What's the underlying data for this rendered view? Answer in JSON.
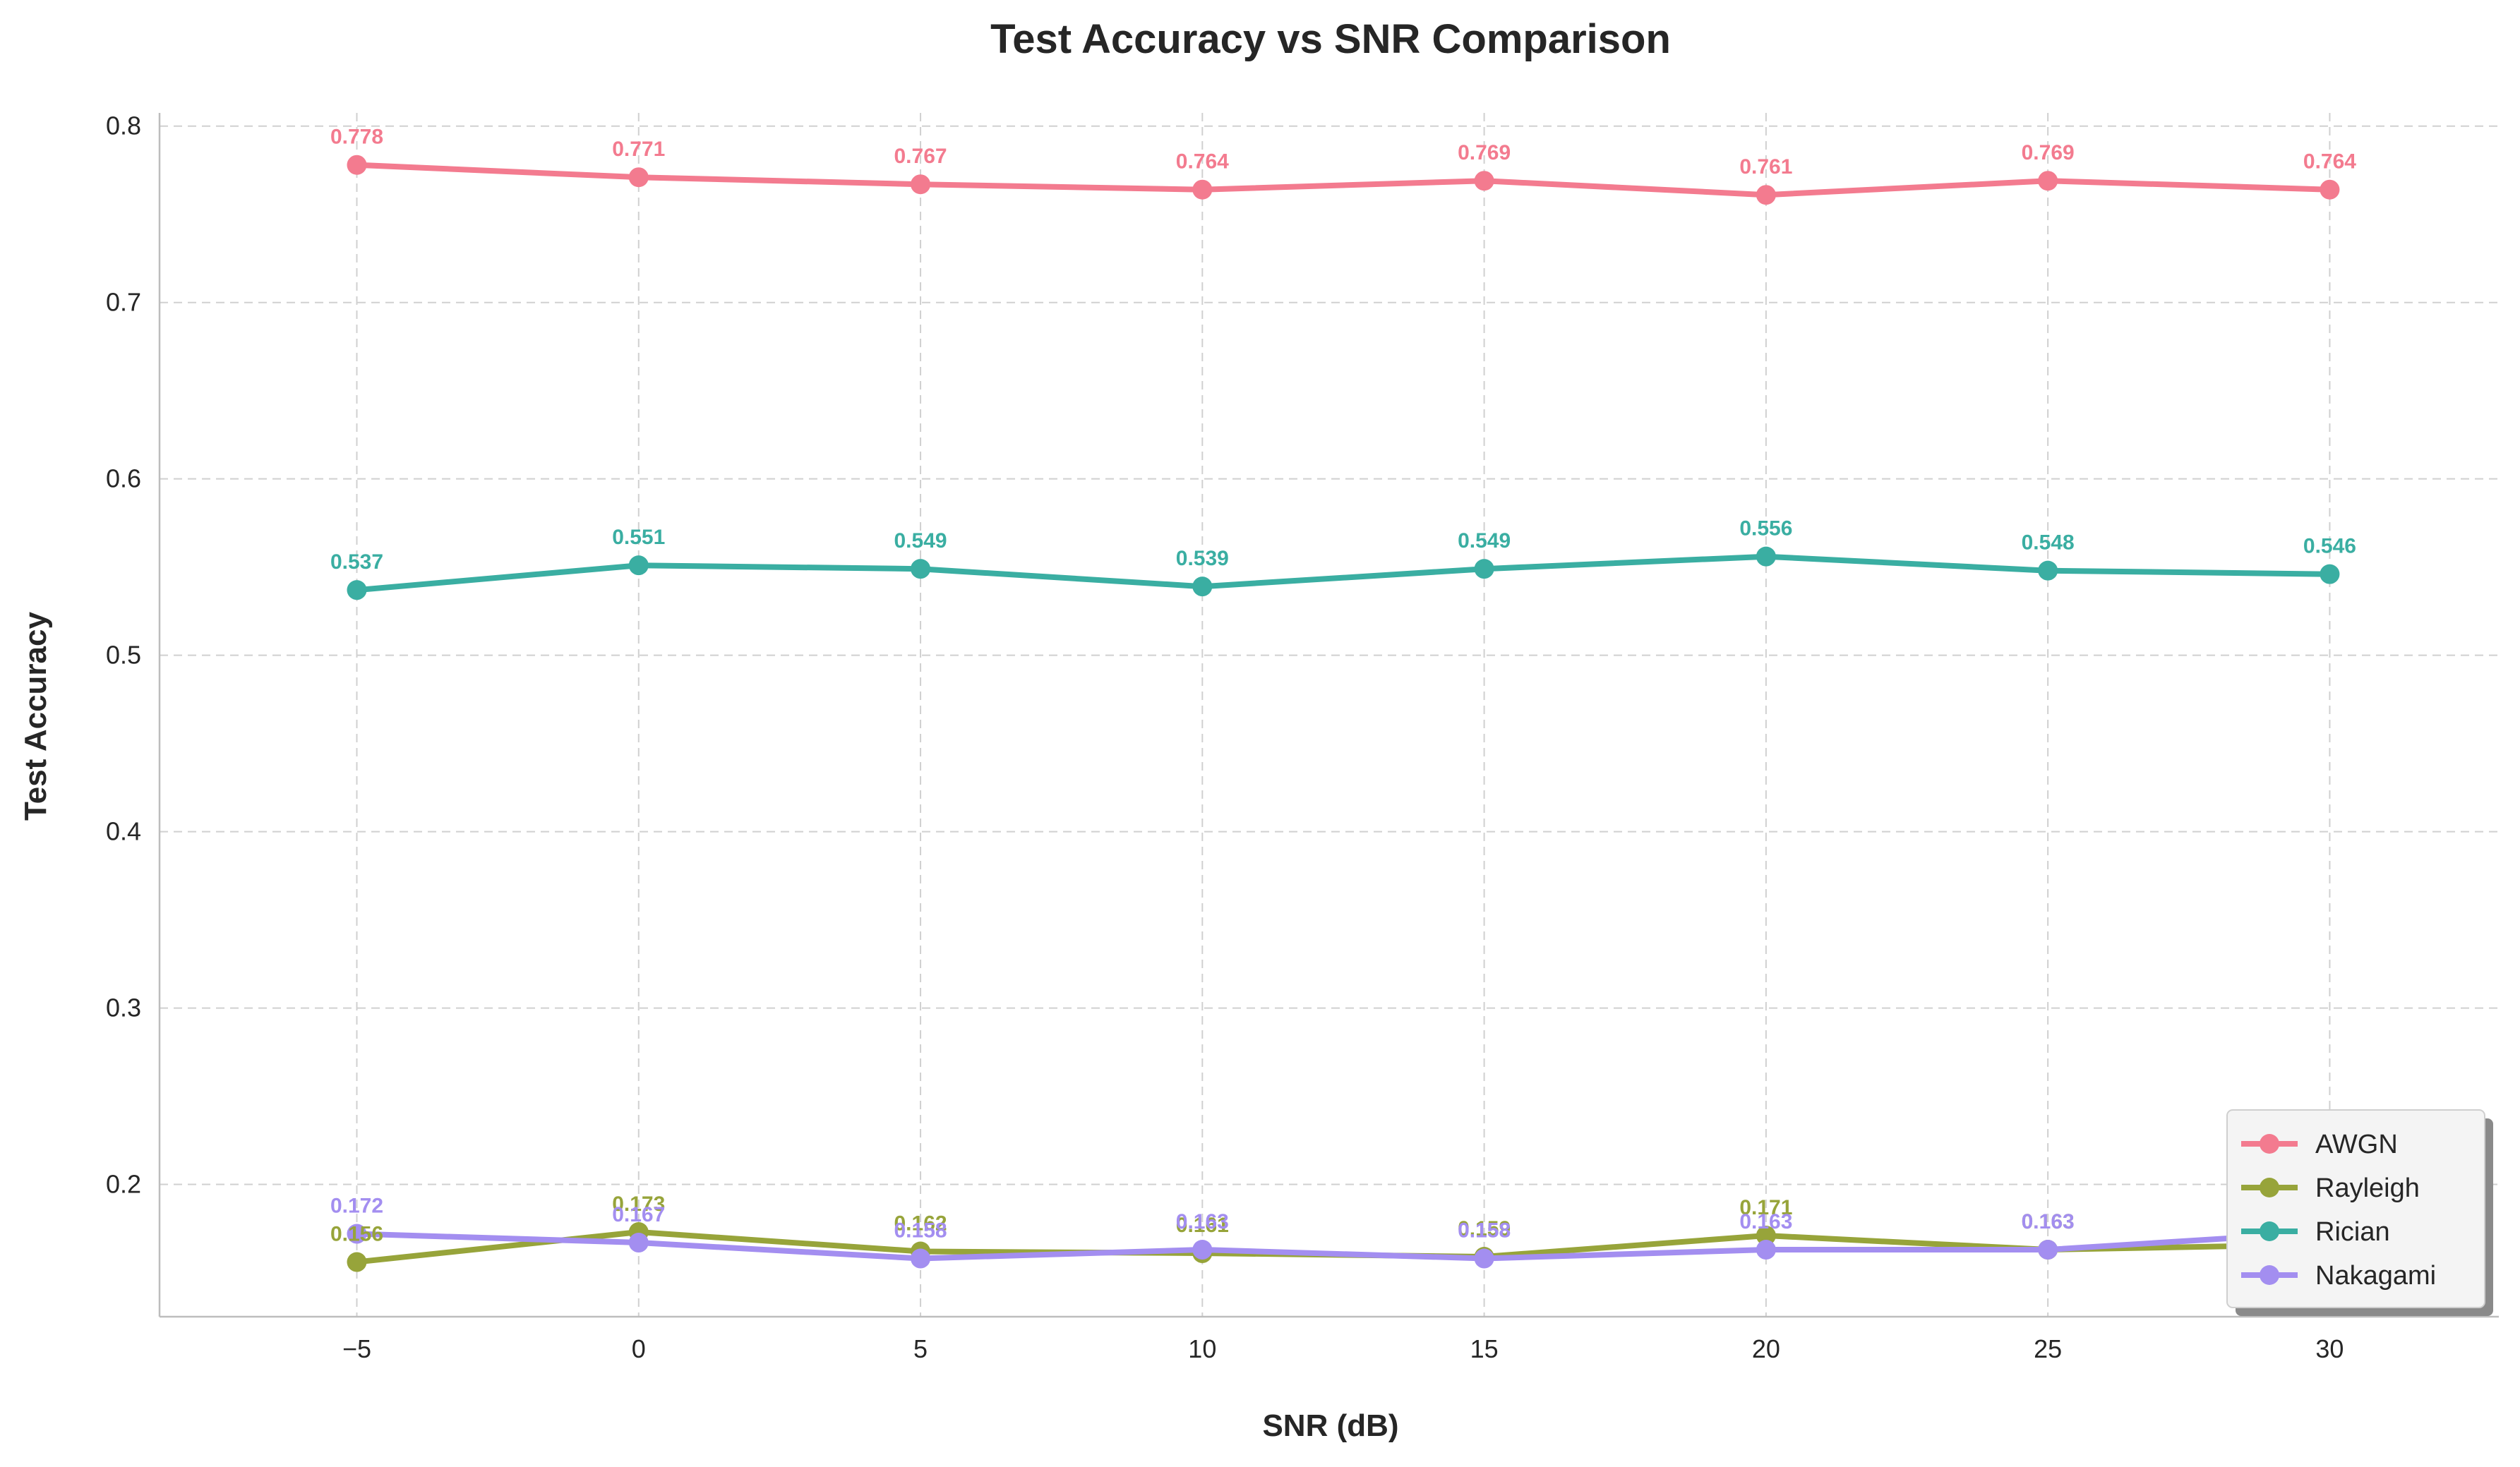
{
  "chart_data": {
    "type": "line",
    "title": "Test Accuracy vs SNR Comparison",
    "xlabel": "SNR (dB)",
    "ylabel": "Test Accuracy",
    "x": [
      -5,
      0,
      5,
      10,
      15,
      20,
      25,
      30
    ],
    "x_tick_labels": [
      "−5",
      "0",
      "5",
      "10",
      "15",
      "20",
      "25",
      "30"
    ],
    "y_ticks": [
      0.2,
      0.3,
      0.4,
      0.5,
      0.6,
      0.7,
      0.8
    ],
    "y_tick_labels": [
      "0.2",
      "0.3",
      "0.4",
      "0.5",
      "0.6",
      "0.7",
      "0.8"
    ],
    "xlim": [
      -8.5,
      33.0
    ],
    "ylim": [
      0.125,
      0.8075
    ],
    "grid": true,
    "legend_position": "bottom-right",
    "series": [
      {
        "name": "AWGN",
        "color": "#f37b8f",
        "values": [
          0.778,
          0.771,
          0.767,
          0.764,
          0.769,
          0.761,
          0.769,
          0.764
        ],
        "labels": [
          "0.778",
          "0.771",
          "0.767",
          "0.764",
          "0.769",
          "0.761",
          "0.769",
          "0.764"
        ]
      },
      {
        "name": "Rayleigh",
        "color": "#97a43a",
        "values": [
          0.156,
          0.173,
          0.162,
          0.161,
          0.159,
          0.171,
          0.163,
          0.166
        ],
        "labels": [
          "0.156",
          "0.173",
          "0.162",
          "0.161",
          "0.159",
          "0.171",
          "0.163",
          "0.166"
        ]
      },
      {
        "name": "Rician",
        "color": "#3aaea2",
        "values": [
          0.537,
          0.551,
          0.549,
          0.539,
          0.549,
          0.556,
          0.548,
          0.546
        ],
        "labels": [
          "0.537",
          "0.551",
          "0.549",
          "0.539",
          "0.549",
          "0.556",
          "0.548",
          "0.546"
        ]
      },
      {
        "name": "Nakagami",
        "color": "#a38ef0",
        "values": [
          0.172,
          0.167,
          0.158,
          0.163,
          0.158,
          0.163,
          0.163,
          0.173
        ],
        "labels": [
          "0.172",
          "0.167",
          "0.158",
          "0.163",
          "0.158",
          "0.163",
          "0.163",
          "0.173"
        ]
      }
    ]
  }
}
